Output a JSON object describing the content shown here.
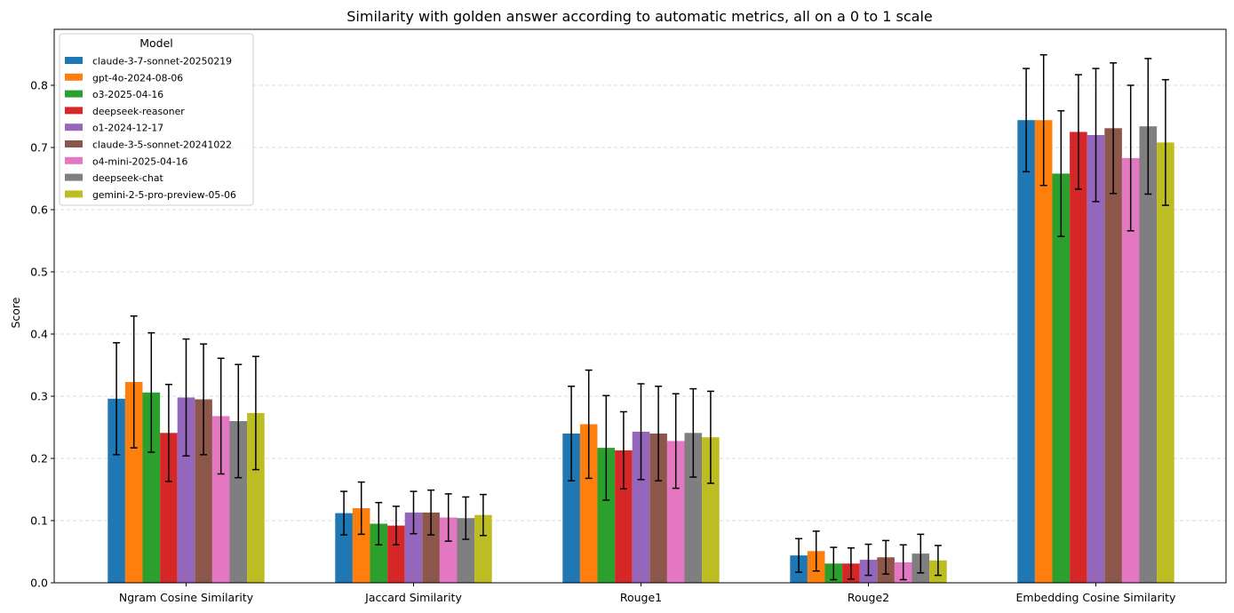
{
  "chart_data": {
    "type": "bar",
    "title": "Similarity with golden answer according to automatic metrics, all on a 0 to 1 scale",
    "xlabel": "",
    "ylabel": "Score",
    "ylim": [
      0,
      0.89
    ],
    "yticks": [
      0.0,
      0.1,
      0.2,
      0.3,
      0.4,
      0.5,
      0.6,
      0.7,
      0.8
    ],
    "ytick_labels": [
      "0.0",
      "0.1",
      "0.2",
      "0.3",
      "0.4",
      "0.5",
      "0.6",
      "0.7",
      "0.8"
    ],
    "grid": "horizontal dashed",
    "legend_title": "Model",
    "legend_position": "top-left",
    "categories": [
      "Ngram Cosine Similarity",
      "Jaccard Similarity",
      "Rouge1",
      "Rouge2",
      "Embedding Cosine Similarity"
    ],
    "series": [
      {
        "name": "claude-3-7-sonnet-20250219",
        "color": "#1f77b4",
        "values": [
          0.296,
          0.112,
          0.24,
          0.044,
          0.744
        ],
        "errors": [
          0.09,
          0.035,
          0.076,
          0.027,
          0.083
        ]
      },
      {
        "name": "gpt-4o-2024-08-06",
        "color": "#ff7f0e",
        "values": [
          0.323,
          0.12,
          0.255,
          0.051,
          0.744
        ],
        "errors": [
          0.106,
          0.042,
          0.087,
          0.032,
          0.105
        ]
      },
      {
        "name": "o3-2025-04-16",
        "color": "#2ca02c",
        "values": [
          0.306,
          0.095,
          0.217,
          0.031,
          0.658
        ],
        "errors": [
          0.096,
          0.034,
          0.084,
          0.026,
          0.101
        ]
      },
      {
        "name": "deepseek-reasoner",
        "color": "#d62728",
        "values": [
          0.241,
          0.092,
          0.213,
          0.031,
          0.725
        ],
        "errors": [
          0.078,
          0.031,
          0.062,
          0.025,
          0.092
        ]
      },
      {
        "name": "o1-2024-12-17",
        "color": "#9467bd",
        "values": [
          0.298,
          0.113,
          0.243,
          0.037,
          0.72
        ],
        "errors": [
          0.094,
          0.034,
          0.077,
          0.025,
          0.107
        ]
      },
      {
        "name": "claude-3-5-sonnet-20241022",
        "color": "#8c564b",
        "values": [
          0.295,
          0.113,
          0.24,
          0.041,
          0.731
        ],
        "errors": [
          0.089,
          0.036,
          0.076,
          0.027,
          0.105
        ]
      },
      {
        "name": "o4-mini-2025-04-16",
        "color": "#e377c2",
        "values": [
          0.268,
          0.105,
          0.228,
          0.033,
          0.683
        ],
        "errors": [
          0.093,
          0.038,
          0.076,
          0.028,
          0.117
        ]
      },
      {
        "name": "deepseek-chat",
        "color": "#7f7f7f",
        "values": [
          0.26,
          0.104,
          0.241,
          0.047,
          0.734
        ],
        "errors": [
          0.091,
          0.034,
          0.071,
          0.031,
          0.109
        ]
      },
      {
        "name": "gemini-2-5-pro-preview-05-06",
        "color": "#bcbd22",
        "values": [
          0.273,
          0.109,
          0.234,
          0.036,
          0.708
        ],
        "errors": [
          0.091,
          0.033,
          0.074,
          0.024,
          0.101
        ]
      }
    ]
  }
}
